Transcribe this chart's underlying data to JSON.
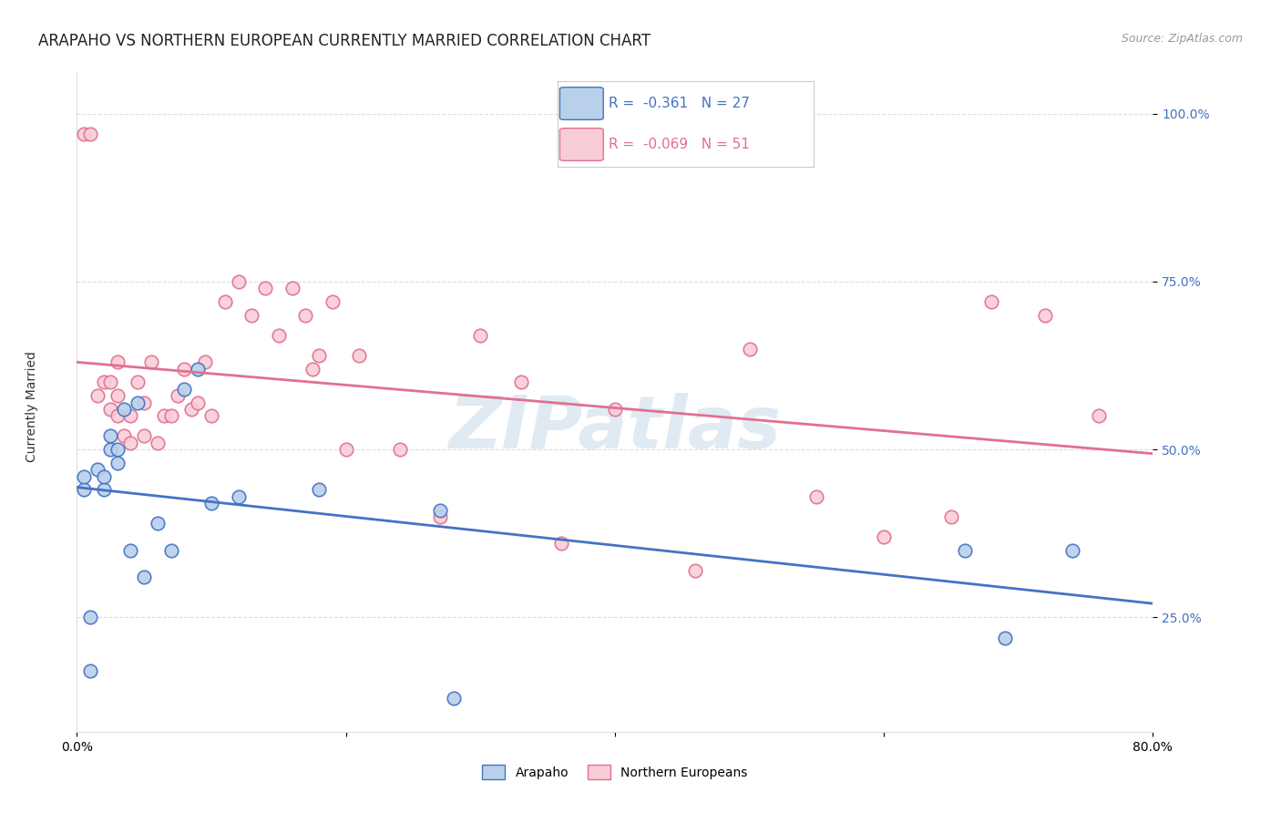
{
  "title": "ARAPAHO VS NORTHERN EUROPEAN CURRENTLY MARRIED CORRELATION CHART",
  "source": "Source: ZipAtlas.com",
  "ylabel": "Currently Married",
  "y_ticks": [
    0.25,
    0.5,
    0.75,
    1.0
  ],
  "y_tick_labels": [
    "25.0%",
    "50.0%",
    "75.0%",
    "100.0%"
  ],
  "x_range": [
    0.0,
    0.8
  ],
  "y_range": [
    0.08,
    1.06
  ],
  "legend_blue_r": "-0.361",
  "legend_blue_n": "27",
  "legend_pink_r": "-0.069",
  "legend_pink_n": "51",
  "blue_color": "#b8d0ea",
  "blue_line_color": "#4472c4",
  "pink_color": "#f9cdd8",
  "pink_line_color": "#e07090",
  "watermark": "ZIPatlas",
  "watermark_color": "#ccdcec",
  "arapaho_x": [
    0.005,
    0.005,
    0.01,
    0.01,
    0.015,
    0.02,
    0.02,
    0.025,
    0.025,
    0.03,
    0.03,
    0.035,
    0.04,
    0.045,
    0.05,
    0.06,
    0.07,
    0.08,
    0.09,
    0.1,
    0.12,
    0.18,
    0.27,
    0.28,
    0.66,
    0.69,
    0.74
  ],
  "arapaho_y": [
    0.44,
    0.46,
    0.17,
    0.25,
    0.47,
    0.44,
    0.46,
    0.5,
    0.52,
    0.48,
    0.5,
    0.56,
    0.35,
    0.57,
    0.31,
    0.39,
    0.35,
    0.59,
    0.62,
    0.42,
    0.43,
    0.44,
    0.41,
    0.13,
    0.35,
    0.22,
    0.35
  ],
  "northern_x": [
    0.005,
    0.01,
    0.015,
    0.02,
    0.025,
    0.025,
    0.03,
    0.03,
    0.03,
    0.035,
    0.04,
    0.04,
    0.045,
    0.05,
    0.05,
    0.055,
    0.06,
    0.065,
    0.07,
    0.075,
    0.08,
    0.085,
    0.09,
    0.095,
    0.1,
    0.11,
    0.12,
    0.13,
    0.14,
    0.15,
    0.16,
    0.17,
    0.175,
    0.18,
    0.19,
    0.2,
    0.21,
    0.24,
    0.27,
    0.3,
    0.33,
    0.36,
    0.4,
    0.46,
    0.5,
    0.55,
    0.6,
    0.65,
    0.68,
    0.72,
    0.76
  ],
  "northern_y": [
    0.97,
    0.97,
    0.58,
    0.6,
    0.56,
    0.6,
    0.55,
    0.58,
    0.63,
    0.52,
    0.51,
    0.55,
    0.6,
    0.52,
    0.57,
    0.63,
    0.51,
    0.55,
    0.55,
    0.58,
    0.62,
    0.56,
    0.57,
    0.63,
    0.55,
    0.72,
    0.75,
    0.7,
    0.74,
    0.67,
    0.74,
    0.7,
    0.62,
    0.64,
    0.72,
    0.5,
    0.64,
    0.5,
    0.4,
    0.67,
    0.6,
    0.36,
    0.56,
    0.32,
    0.65,
    0.43,
    0.37,
    0.4,
    0.72,
    0.7,
    0.55
  ],
  "grid_color": "#dddddd",
  "background_color": "#ffffff",
  "title_fontsize": 12,
  "axis_label_fontsize": 10,
  "tick_fontsize": 10,
  "legend_fontsize": 11
}
